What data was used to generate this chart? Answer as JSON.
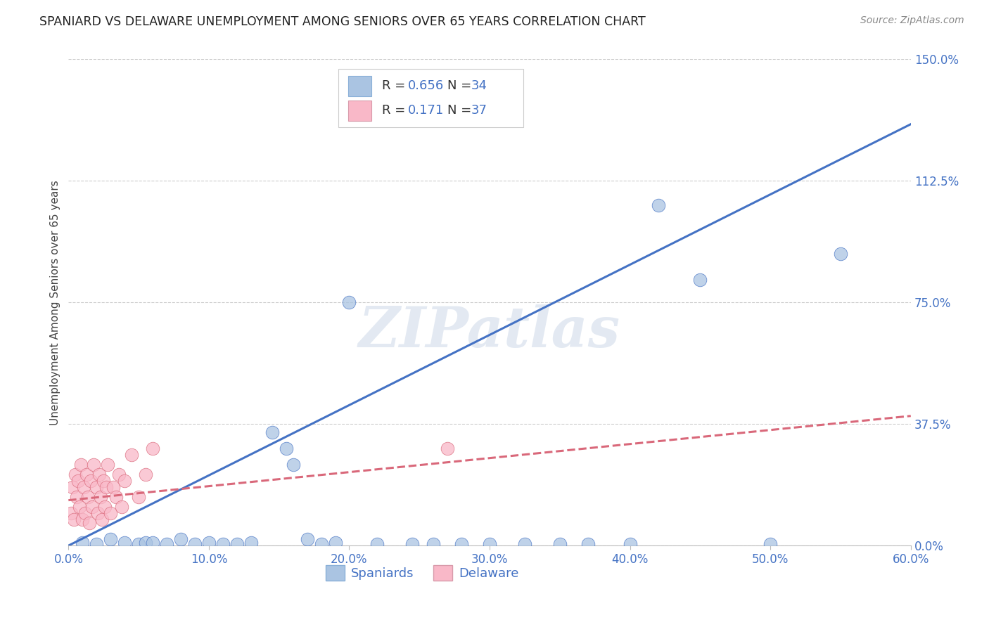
{
  "title": "SPANIARD VS DELAWARE UNEMPLOYMENT AMONG SENIORS OVER 65 YEARS CORRELATION CHART",
  "source": "Source: ZipAtlas.com",
  "ylabel": "Unemployment Among Seniors over 65 years",
  "ylabel_ticks_right": [
    "0.0%",
    "37.5%",
    "75.0%",
    "112.5%",
    "150.0%"
  ],
  "ylabel_vals_right": [
    0.0,
    0.375,
    0.75,
    1.125,
    1.5
  ],
  "xlabel_ticks": [
    "0.0%",
    "10.0%",
    "20.0%",
    "30.0%",
    "40.0%",
    "50.0%",
    "60.0%"
  ],
  "xlabel_vals": [
    0.0,
    0.1,
    0.2,
    0.3,
    0.4,
    0.5,
    0.6
  ],
  "xlim": [
    0.0,
    0.6
  ],
  "ylim": [
    0.0,
    1.5
  ],
  "spaniards_R": "0.656",
  "spaniards_N": "34",
  "delaware_R": "0.171",
  "delaware_N": "37",
  "legend_labels": [
    "Spaniards",
    "Delaware"
  ],
  "blue_scatter_color": "#aac4e2",
  "blue_line_color": "#4472c4",
  "pink_scatter_color": "#f9b8c8",
  "pink_line_color": "#d9687a",
  "label_color": "#4472c4",
  "watermark": "ZIPatlas",
  "background_color": "#ffffff",
  "grid_color": "#cccccc",
  "title_color": "#222222",
  "sp_x": [
    0.01,
    0.02,
    0.03,
    0.04,
    0.05,
    0.055,
    0.06,
    0.07,
    0.08,
    0.09,
    0.1,
    0.11,
    0.12,
    0.13,
    0.145,
    0.155,
    0.16,
    0.17,
    0.18,
    0.19,
    0.2,
    0.22,
    0.245,
    0.26,
    0.28,
    0.3,
    0.325,
    0.35,
    0.37,
    0.4,
    0.42,
    0.45,
    0.5,
    0.55
  ],
  "sp_y": [
    0.01,
    0.005,
    0.02,
    0.01,
    0.005,
    0.01,
    0.01,
    0.005,
    0.02,
    0.005,
    0.01,
    0.005,
    0.005,
    0.01,
    0.35,
    0.3,
    0.25,
    0.02,
    0.005,
    0.01,
    0.75,
    0.005,
    0.005,
    0.005,
    0.005,
    0.005,
    0.005,
    0.005,
    0.005,
    0.005,
    1.05,
    0.82,
    0.005,
    0.9
  ],
  "de_x": [
    0.002,
    0.003,
    0.004,
    0.005,
    0.006,
    0.007,
    0.008,
    0.009,
    0.01,
    0.011,
    0.012,
    0.013,
    0.014,
    0.015,
    0.016,
    0.017,
    0.018,
    0.02,
    0.021,
    0.022,
    0.023,
    0.024,
    0.025,
    0.026,
    0.027,
    0.028,
    0.03,
    0.032,
    0.034,
    0.036,
    0.038,
    0.04,
    0.045,
    0.05,
    0.055,
    0.06,
    0.27
  ],
  "de_y": [
    0.1,
    0.18,
    0.08,
    0.22,
    0.15,
    0.2,
    0.12,
    0.25,
    0.08,
    0.18,
    0.1,
    0.22,
    0.15,
    0.07,
    0.2,
    0.12,
    0.25,
    0.18,
    0.1,
    0.22,
    0.15,
    0.08,
    0.2,
    0.12,
    0.18,
    0.25,
    0.1,
    0.18,
    0.15,
    0.22,
    0.12,
    0.2,
    0.28,
    0.15,
    0.22,
    0.3,
    0.3
  ],
  "sp_line_x": [
    0.0,
    0.6
  ],
  "sp_line_y": [
    0.0,
    1.3
  ],
  "de_line_x": [
    0.0,
    0.6
  ],
  "de_line_y": [
    0.14,
    0.4
  ]
}
